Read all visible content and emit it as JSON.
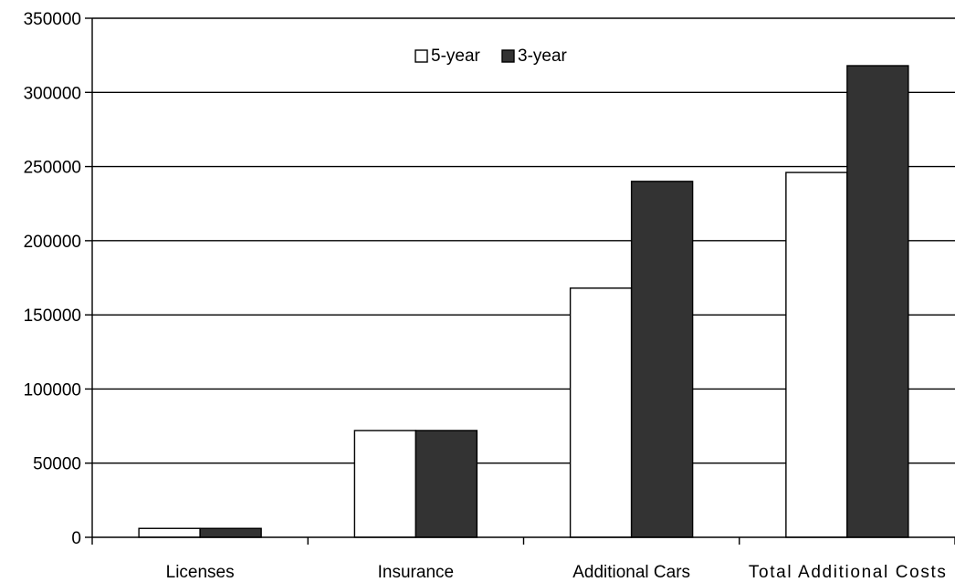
{
  "chart_data": {
    "type": "bar",
    "categories": [
      "Licenses",
      "Insurance",
      "Additional Cars",
      "Total Additional Costs"
    ],
    "series": [
      {
        "name": "5-year",
        "color": "#ffffff",
        "values": [
          6000,
          72000,
          168000,
          246000
        ]
      },
      {
        "name": "3-year",
        "color": "#333333",
        "values": [
          6000,
          72000,
          240000,
          318000
        ]
      }
    ],
    "ylim": [
      0,
      350000
    ],
    "yticks": [
      0,
      50000,
      100000,
      150000,
      200000,
      250000,
      300000,
      350000
    ],
    "grid": true,
    "legend_position": "top-center",
    "title": "",
    "xlabel": "",
    "ylabel": ""
  }
}
